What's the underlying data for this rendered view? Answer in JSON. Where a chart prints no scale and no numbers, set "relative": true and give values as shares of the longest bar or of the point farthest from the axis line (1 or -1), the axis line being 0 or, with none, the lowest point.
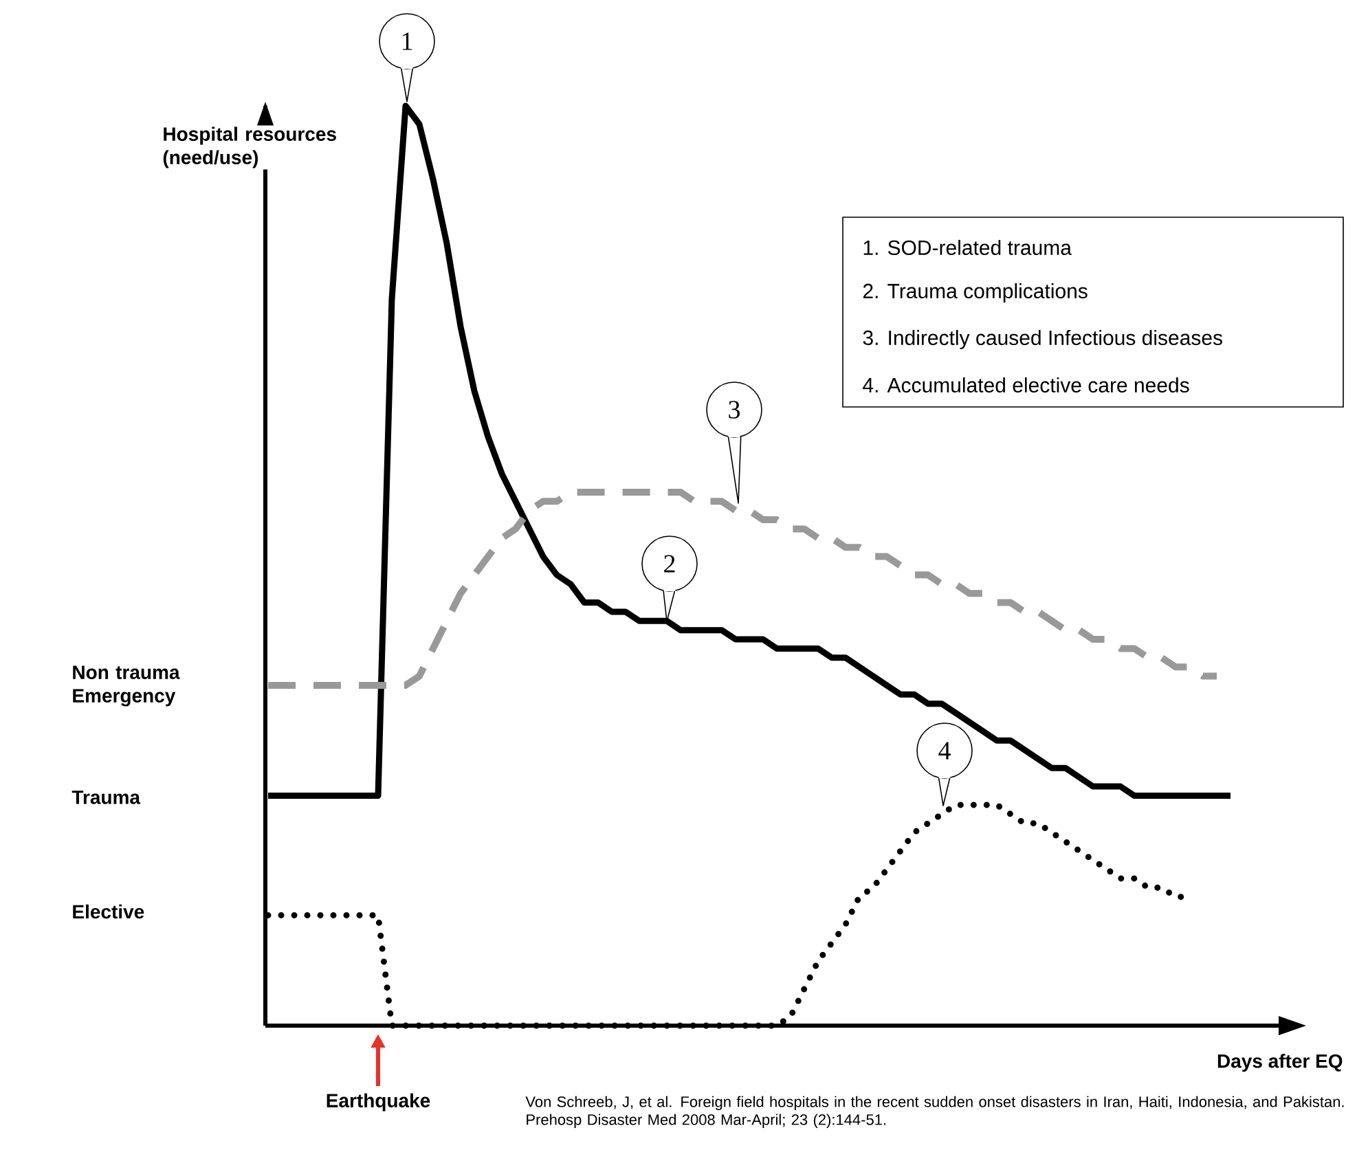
{
  "chart_data": {
    "type": "line",
    "relative": true,
    "xlabel": "Days after EQ",
    "ylabel": "Hospital resources (need/use)",
    "categories": [
      null,
      null,
      null,
      null,
      null,
      null,
      null,
      null,
      null,
      null,
      null,
      null,
      null,
      null,
      null,
      null,
      null,
      null,
      null,
      null,
      null,
      null,
      null,
      null,
      null,
      null,
      null,
      null,
      null,
      null,
      null,
      null,
      null,
      null,
      null,
      null,
      null,
      null,
      null,
      null,
      null,
      null,
      null,
      null,
      null,
      null,
      null,
      null,
      null,
      null,
      null,
      null,
      null,
      null,
      null,
      null,
      null,
      null,
      null,
      null,
      null,
      null,
      null,
      null,
      null,
      null,
      null,
      null,
      null,
      null,
      null
    ],
    "series": [
      {
        "color": "#000000",
        "line_style": "solid",
        "values": [
          0.25,
          0.25,
          0.25,
          0.25,
          0.25,
          0.25,
          0.25,
          0.25,
          0.25,
          0.79,
          1.0,
          0.98,
          0.92,
          0.85,
          0.76,
          0.69,
          0.64,
          0.6,
          0.57,
          0.54,
          0.51,
          0.49,
          0.48,
          0.46,
          0.46,
          0.45,
          0.45,
          0.44,
          0.44,
          0.44,
          0.43,
          0.43,
          0.43,
          0.43,
          0.42,
          0.42,
          0.42,
          0.41,
          0.41,
          0.41,
          0.41,
          0.4,
          0.4,
          0.39,
          0.38,
          0.37,
          0.36,
          0.36,
          0.35,
          0.35,
          0.34,
          0.33,
          0.32,
          0.31,
          0.31,
          0.3,
          0.29,
          0.28,
          0.28,
          0.27,
          0.26,
          0.26,
          0.26,
          0.25,
          0.25,
          0.25,
          0.25,
          0.25,
          0.25,
          0.25,
          0.25
        ]
      },
      {
        "color": "#999999",
        "line_style": "dashed",
        "values": [
          0.37,
          0.37,
          0.37,
          0.37,
          0.37,
          0.37,
          0.37,
          0.37,
          0.37,
          0.37,
          0.37,
          0.38,
          0.41,
          0.44,
          0.47,
          0.49,
          0.51,
          0.53,
          0.54,
          0.56,
          0.57,
          0.57,
          0.58,
          0.58,
          0.58,
          0.58,
          0.58,
          0.58,
          0.58,
          0.58,
          0.58,
          0.57,
          0.57,
          0.57,
          0.56,
          0.56,
          0.55,
          0.55,
          0.54,
          0.54,
          0.53,
          0.53,
          0.52,
          0.52,
          0.51,
          0.51,
          0.5,
          0.49,
          0.49,
          0.48,
          0.48,
          0.47,
          0.47,
          0.46,
          0.46,
          0.45,
          0.45,
          0.44,
          0.43,
          0.43,
          0.42,
          0.42,
          0.41,
          0.41,
          0.4,
          0.4,
          0.39,
          0.39,
          0.38,
          0.38,
          null
        ]
      },
      {
        "color": "#000000",
        "line_style": "dotted",
        "values": [
          0.12,
          0.12,
          0.12,
          0.12,
          0.12,
          0.12,
          0.12,
          0.12,
          0.12,
          0,
          0,
          0,
          0,
          0,
          0,
          0,
          0,
          0,
          0,
          0,
          0,
          0,
          0,
          0,
          0,
          0,
          0,
          0,
          0,
          0,
          0,
          0,
          0,
          0,
          0,
          0,
          0,
          0,
          0.01,
          0.04,
          0.07,
          0.09,
          0.11,
          0.14,
          0.15,
          0.17,
          0.19,
          0.21,
          0.22,
          0.23,
          0.24,
          0.24,
          0.24,
          0.24,
          0.23,
          0.22,
          0.22,
          0.21,
          0.2,
          0.19,
          0.18,
          0.17,
          0.16,
          0.16,
          0.15,
          0.15,
          0.14,
          0.14,
          null,
          null,
          null
        ]
      }
    ],
    "annotations": [
      "Non trauma Emergency",
      "Trauma",
      "Elective",
      "Earthquake",
      "1",
      "2",
      "3",
      "4",
      "1.    SOD-related trauma",
      "2.    Trauma complications",
      "3.    Indirectly caused Infectious diseases",
      "4.    Accumulated elective care needs",
      "Von Schreeb, J, et al. Foreign field hospitals in the recent sudden onset disasters in Iran, Haiti, Indonesia, and Pakistan. Prehosp Disaster Med 2008 Mar-April; 23 (2):144-51."
    ]
  }
}
